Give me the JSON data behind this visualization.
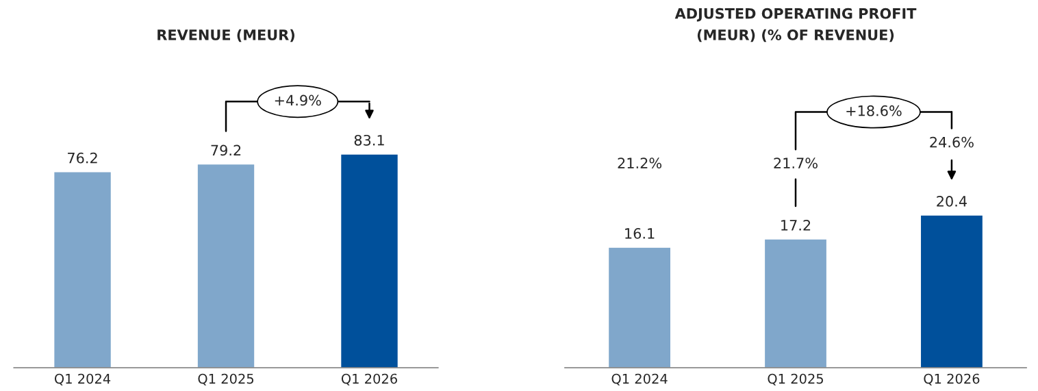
{
  "chart_data": [
    {
      "type": "bar",
      "title": "REVENUE (MEUR)",
      "categories": [
        "Q1 2024",
        "Q1 2025",
        "Q1 2026"
      ],
      "values": [
        76.2,
        79.2,
        83.1
      ],
      "colors": [
        "#80a7cb",
        "#80a7cb",
        "#00509b"
      ],
      "data_labels": true,
      "tick_labels": "x",
      "grid": false,
      "legend": false,
      "annotations": [
        "+4.9%"
      ]
    },
    {
      "type": "bar",
      "title": "ADJUSTED OPERATING PROFIT\n(MEUR) (% OF REVENUE)",
      "categories": [
        "Q1 2024",
        "Q1 2025",
        "Q1 2026"
      ],
      "values": [
        16.1,
        17.2,
        20.4
      ],
      "colors": [
        "#80a7cb",
        "#80a7cb",
        "#00509b"
      ],
      "data_labels": true,
      "tick_labels": "x",
      "grid": false,
      "legend": false,
      "annotations": [
        "+18.6%",
        "21.2%",
        "21.7%",
        "24.6%"
      ]
    }
  ]
}
